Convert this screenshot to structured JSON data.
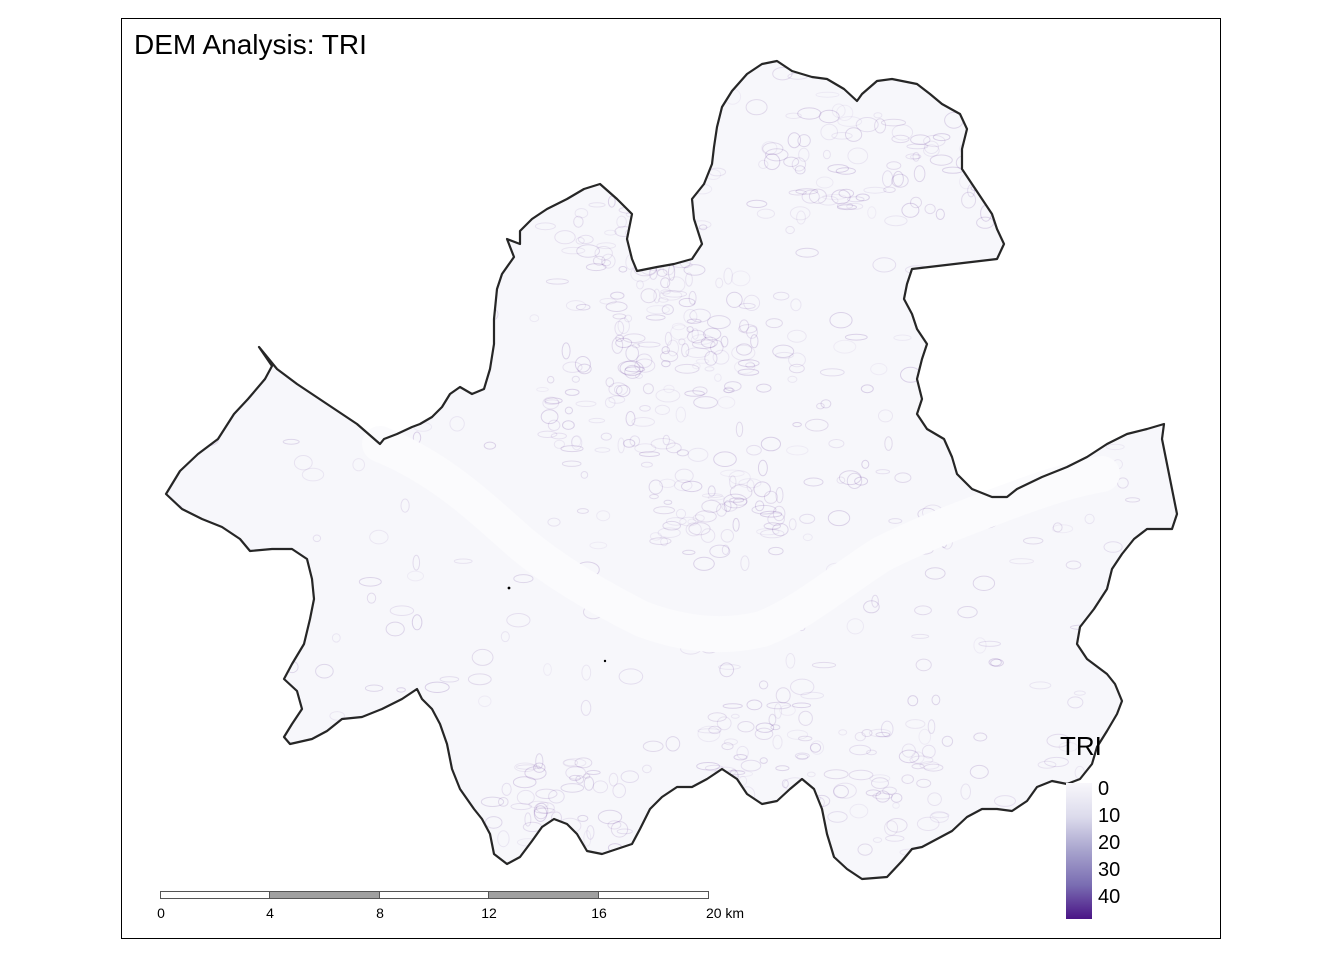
{
  "map": {
    "title": "DEM Analysis: TRI",
    "boundary_color": "#262626",
    "fill_color": "#f7f7fb",
    "relief_color": "#4a1486",
    "river_color": "#fbfbfd"
  },
  "legend": {
    "title": "TRI",
    "labels": [
      "0",
      "10",
      "20",
      "30",
      "40"
    ],
    "color_low": "#f8f7fb",
    "color_high": "#4a1486"
  },
  "scale_bar": {
    "ticks": [
      "0",
      "4",
      "8",
      "12",
      "16",
      "20 km"
    ],
    "fill_dark": "#a0a0a0",
    "fill_light": "#ffffff"
  }
}
